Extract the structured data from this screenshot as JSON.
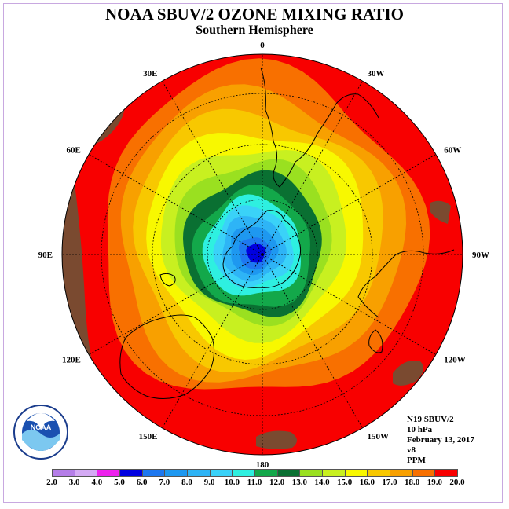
{
  "header": {
    "title": "NOAA SBUV/2 OZONE MIXING RATIO",
    "subtitle": "Southern Hemisphere"
  },
  "map": {
    "projection": "south-polar-stereographic",
    "longitude_labels": [
      {
        "text": "90W",
        "lon": -90
      },
      {
        "text": "60W",
        "lon": -60
      },
      {
        "text": "30W",
        "lon": -30
      },
      {
        "text": "0",
        "lon": 0
      },
      {
        "text": "30E",
        "lon": 30
      },
      {
        "text": "60E",
        "lon": 60
      },
      {
        "text": "90E",
        "lon": 90
      },
      {
        "text": "120E",
        "lon": 120
      },
      {
        "text": "150E",
        "lon": 150
      },
      {
        "text": "180",
        "lon": 180
      },
      {
        "text": "150W",
        "lon": -150
      },
      {
        "text": "120W",
        "lon": -120
      }
    ],
    "contour_bands_outer_to_inner_ppm": [
      19.0,
      18.0,
      17.0,
      16.0,
      15.0,
      14.0,
      13.0,
      12.0,
      11.0,
      10.0,
      9.0,
      8.0,
      7.0,
      6.0,
      5.0
    ]
  },
  "info": {
    "instrument": "N19 SBUV/2",
    "level": "10 hPa",
    "date": "February 13, 2017",
    "version": "v8",
    "units": "PPM"
  },
  "legend": {
    "values": [
      "2.0",
      "3.0",
      "4.0",
      "5.0",
      "6.0",
      "7.0",
      "8.0",
      "9.0",
      "10.0",
      "11.0",
      "12.0",
      "13.0",
      "14.0",
      "15.0",
      "16.0",
      "17.0",
      "18.0",
      "19.0",
      "20.0"
    ],
    "colors": [
      "#b57ee8",
      "#d4aaf4",
      "#ee22ee",
      "#0000e0",
      "#1e78f0",
      "#1e98f0",
      "#2eb4f6",
      "#3ad2f8",
      "#2ef0e0",
      "#13a84a",
      "#0a7032",
      "#9ae020",
      "#c8f020",
      "#f8f800",
      "#f8c800",
      "#f8a000",
      "#f87000",
      "#f80000",
      "#7a4a30"
    ]
  },
  "logo": {
    "text": "NOAA"
  }
}
